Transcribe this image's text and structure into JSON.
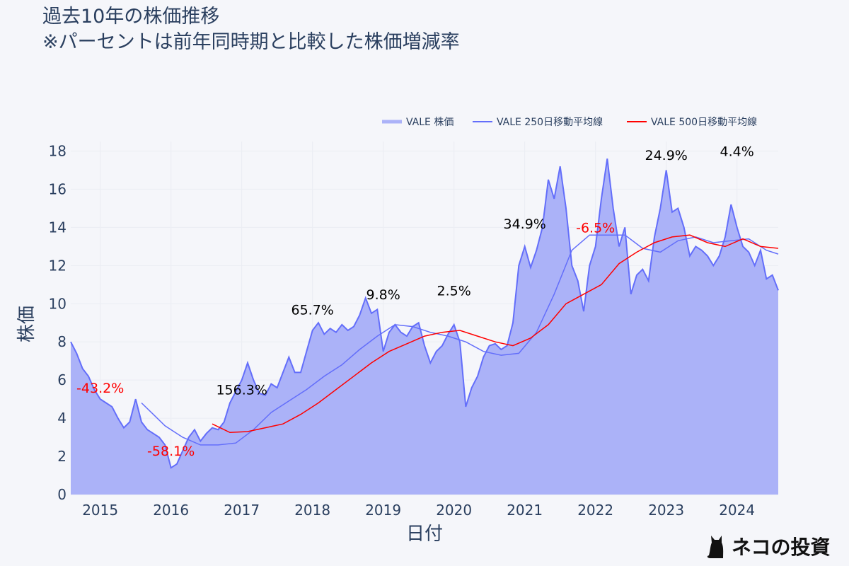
{
  "title_lines": [
    "過去10年の株価推移",
    "※パーセントは前年同時期と比較した株価増減率"
  ],
  "logo_text": "ネコの投資",
  "chart_data": {
    "type": "area",
    "xlabel": "日付",
    "ylabel": "株価",
    "xlim": [
      "2014-08",
      "2024-08"
    ],
    "ylim": [
      0,
      18.5
    ],
    "x_ticks": [
      "2015",
      "2016",
      "2017",
      "2018",
      "2019",
      "2020",
      "2021",
      "2022",
      "2023",
      "2024"
    ],
    "y_ticks": [
      0,
      2,
      4,
      6,
      8,
      10,
      12,
      14,
      16,
      18
    ],
    "grid": true,
    "legend_placement": "top-right",
    "colors": {
      "price_line": "#636efa",
      "price_fill": "#abb2f8",
      "ma250": "#636efa",
      "ma500": "#ff0000",
      "pos_label": "#000000",
      "neg_label": "#ff0000"
    },
    "series": [
      {
        "name": "VALE 株価",
        "kind": "area",
        "points": [
          [
            "2014-08",
            8.0
          ],
          [
            "2014-09",
            7.4
          ],
          [
            "2014-10",
            6.6
          ],
          [
            "2014-11",
            6.2
          ],
          [
            "2014-12",
            5.5
          ],
          [
            "2015-01",
            5.0
          ],
          [
            "2015-02",
            4.8
          ],
          [
            "2015-03",
            4.6
          ],
          [
            "2015-04",
            4.0
          ],
          [
            "2015-05",
            3.5
          ],
          [
            "2015-06",
            3.8
          ],
          [
            "2015-07",
            5.0
          ],
          [
            "2015-08",
            3.8
          ],
          [
            "2015-09",
            3.4
          ],
          [
            "2015-10",
            3.2
          ],
          [
            "2015-11",
            3.0
          ],
          [
            "2015-12",
            2.6
          ],
          [
            "2016-01",
            1.4
          ],
          [
            "2016-02",
            1.6
          ],
          [
            "2016-03",
            2.3
          ],
          [
            "2016-04",
            3.0
          ],
          [
            "2016-05",
            3.4
          ],
          [
            "2016-06",
            2.8
          ],
          [
            "2016-07",
            3.2
          ],
          [
            "2016-08",
            3.5
          ],
          [
            "2016-09",
            3.4
          ],
          [
            "2016-10",
            3.8
          ],
          [
            "2016-11",
            4.8
          ],
          [
            "2016-12",
            5.4
          ],
          [
            "2017-01",
            6.0
          ],
          [
            "2017-02",
            6.9
          ],
          [
            "2017-03",
            6.0
          ],
          [
            "2017-04",
            5.3
          ],
          [
            "2017-05",
            5.2
          ],
          [
            "2017-06",
            5.8
          ],
          [
            "2017-07",
            5.6
          ],
          [
            "2017-08",
            6.4
          ],
          [
            "2017-09",
            7.2
          ],
          [
            "2017-10",
            6.4
          ],
          [
            "2017-11",
            6.4
          ],
          [
            "2017-12",
            7.5
          ],
          [
            "2018-01",
            8.6
          ],
          [
            "2018-02",
            9.0
          ],
          [
            "2018-03",
            8.4
          ],
          [
            "2018-04",
            8.7
          ],
          [
            "2018-05",
            8.5
          ],
          [
            "2018-06",
            8.9
          ],
          [
            "2018-07",
            8.6
          ],
          [
            "2018-08",
            8.8
          ],
          [
            "2018-09",
            9.4
          ],
          [
            "2018-10",
            10.3
          ],
          [
            "2018-11",
            9.5
          ],
          [
            "2018-12",
            9.7
          ],
          [
            "2019-01",
            7.5
          ],
          [
            "2019-02",
            8.5
          ],
          [
            "2019-03",
            8.9
          ],
          [
            "2019-04",
            8.5
          ],
          [
            "2019-05",
            8.3
          ],
          [
            "2019-06",
            8.8
          ],
          [
            "2019-07",
            9.0
          ],
          [
            "2019-08",
            7.8
          ],
          [
            "2019-09",
            6.9
          ],
          [
            "2019-10",
            7.5
          ],
          [
            "2019-11",
            7.8
          ],
          [
            "2019-12",
            8.4
          ],
          [
            "2020-01",
            8.9
          ],
          [
            "2020-02",
            8.0
          ],
          [
            "2020-03",
            4.6
          ],
          [
            "2020-04",
            5.6
          ],
          [
            "2020-05",
            6.2
          ],
          [
            "2020-06",
            7.2
          ],
          [
            "2020-07",
            7.8
          ],
          [
            "2020-08",
            7.9
          ],
          [
            "2020-09",
            7.6
          ],
          [
            "2020-10",
            7.8
          ],
          [
            "2020-11",
            9.0
          ],
          [
            "2020-12",
            12.0
          ],
          [
            "2021-01",
            13.0
          ],
          [
            "2021-02",
            11.9
          ],
          [
            "2021-03",
            12.8
          ],
          [
            "2021-04",
            14.0
          ],
          [
            "2021-05",
            16.5
          ],
          [
            "2021-06",
            15.5
          ],
          [
            "2021-07",
            17.2
          ],
          [
            "2021-08",
            15.0
          ],
          [
            "2021-09",
            12.0
          ],
          [
            "2021-10",
            11.2
          ],
          [
            "2021-11",
            9.6
          ],
          [
            "2021-12",
            12.0
          ],
          [
            "2022-01",
            13.0
          ],
          [
            "2022-02",
            15.5
          ],
          [
            "2022-03",
            17.6
          ],
          [
            "2022-04",
            15.0
          ],
          [
            "2022-05",
            13.0
          ],
          [
            "2022-06",
            14.0
          ],
          [
            "2022-07",
            10.5
          ],
          [
            "2022-08",
            11.5
          ],
          [
            "2022-09",
            11.8
          ],
          [
            "2022-10",
            11.2
          ],
          [
            "2022-11",
            13.5
          ],
          [
            "2022-12",
            15.0
          ],
          [
            "2023-01",
            17.0
          ],
          [
            "2023-02",
            14.8
          ],
          [
            "2023-03",
            15.0
          ],
          [
            "2023-04",
            14.0
          ],
          [
            "2023-05",
            12.5
          ],
          [
            "2023-06",
            13.0
          ],
          [
            "2023-07",
            12.8
          ],
          [
            "2023-08",
            12.5
          ],
          [
            "2023-09",
            12.0
          ],
          [
            "2023-10",
            12.5
          ],
          [
            "2023-11",
            13.5
          ],
          [
            "2023-12",
            15.2
          ],
          [
            "2024-01",
            14.0
          ],
          [
            "2024-02",
            13.0
          ],
          [
            "2024-03",
            12.7
          ],
          [
            "2024-04",
            12.0
          ],
          [
            "2024-05",
            12.8
          ],
          [
            "2024-06",
            11.3
          ],
          [
            "2024-07",
            11.5
          ],
          [
            "2024-08",
            10.7
          ]
        ]
      },
      {
        "name": "VALE 250日移動平均線",
        "kind": "line",
        "points": [
          [
            "2015-08",
            4.8
          ],
          [
            "2015-10",
            4.2
          ],
          [
            "2015-12",
            3.6
          ],
          [
            "2016-03",
            3.0
          ],
          [
            "2016-06",
            2.6
          ],
          [
            "2016-09",
            2.6
          ],
          [
            "2016-12",
            2.7
          ],
          [
            "2017-03",
            3.4
          ],
          [
            "2017-06",
            4.3
          ],
          [
            "2017-09",
            4.9
          ],
          [
            "2017-12",
            5.5
          ],
          [
            "2018-03",
            6.2
          ],
          [
            "2018-06",
            6.8
          ],
          [
            "2018-09",
            7.6
          ],
          [
            "2018-12",
            8.3
          ],
          [
            "2019-03",
            8.9
          ],
          [
            "2019-06",
            8.8
          ],
          [
            "2019-09",
            8.5
          ],
          [
            "2019-12",
            8.3
          ],
          [
            "2020-03",
            8.0
          ],
          [
            "2020-06",
            7.5
          ],
          [
            "2020-09",
            7.3
          ],
          [
            "2020-12",
            7.4
          ],
          [
            "2021-03",
            8.5
          ],
          [
            "2021-06",
            10.5
          ],
          [
            "2021-09",
            12.8
          ],
          [
            "2021-12",
            13.6
          ],
          [
            "2022-03",
            13.6
          ],
          [
            "2022-06",
            13.6
          ],
          [
            "2022-09",
            12.9
          ],
          [
            "2022-12",
            12.7
          ],
          [
            "2023-03",
            13.3
          ],
          [
            "2023-06",
            13.5
          ],
          [
            "2023-09",
            13.2
          ],
          [
            "2023-12",
            13.3
          ],
          [
            "2024-03",
            13.4
          ],
          [
            "2024-06",
            12.8
          ],
          [
            "2024-08",
            12.6
          ]
        ]
      },
      {
        "name": "VALE 500日移動平均線",
        "kind": "line",
        "points": [
          [
            "2016-08",
            3.7
          ],
          [
            "2016-11",
            3.25
          ],
          [
            "2017-02",
            3.3
          ],
          [
            "2017-05",
            3.5
          ],
          [
            "2017-08",
            3.7
          ],
          [
            "2017-11",
            4.2
          ],
          [
            "2018-02",
            4.8
          ],
          [
            "2018-05",
            5.5
          ],
          [
            "2018-08",
            6.2
          ],
          [
            "2018-11",
            6.9
          ],
          [
            "2019-02",
            7.5
          ],
          [
            "2019-05",
            7.9
          ],
          [
            "2019-08",
            8.3
          ],
          [
            "2019-11",
            8.5
          ],
          [
            "2020-02",
            8.6
          ],
          [
            "2020-05",
            8.3
          ],
          [
            "2020-08",
            8.0
          ],
          [
            "2020-11",
            7.8
          ],
          [
            "2021-02",
            8.2
          ],
          [
            "2021-05",
            8.9
          ],
          [
            "2021-08",
            10.0
          ],
          [
            "2021-11",
            10.5
          ],
          [
            "2022-02",
            11.0
          ],
          [
            "2022-05",
            12.1
          ],
          [
            "2022-08",
            12.7
          ],
          [
            "2022-11",
            13.2
          ],
          [
            "2023-02",
            13.5
          ],
          [
            "2023-05",
            13.6
          ],
          [
            "2023-08",
            13.2
          ],
          [
            "2023-11",
            13.0
          ],
          [
            "2024-02",
            13.4
          ],
          [
            "2024-05",
            13.0
          ],
          [
            "2024-08",
            12.9
          ]
        ]
      }
    ],
    "annotations": [
      {
        "text": "-43.2%",
        "date": "2015-01",
        "y": 5.6,
        "sign": "neg"
      },
      {
        "text": "-58.1%",
        "date": "2016-01",
        "y": 2.3,
        "sign": "neg"
      },
      {
        "text": "156.3%",
        "date": "2017-01",
        "y": 5.5,
        "sign": "pos"
      },
      {
        "text": "65.7%",
        "date": "2018-01",
        "y": 9.7,
        "sign": "pos"
      },
      {
        "text": "9.8%",
        "date": "2019-01",
        "y": 10.5,
        "sign": "pos"
      },
      {
        "text": "2.5%",
        "date": "2020-01",
        "y": 10.7,
        "sign": "pos"
      },
      {
        "text": "34.9%",
        "date": "2021-01",
        "y": 14.2,
        "sign": "pos"
      },
      {
        "text": "-6.5%",
        "date": "2022-01",
        "y": 14.0,
        "sign": "neg"
      },
      {
        "text": "24.9%",
        "date": "2023-01",
        "y": 17.8,
        "sign": "pos"
      },
      {
        "text": "4.4%",
        "date": "2024-01",
        "y": 18.0,
        "sign": "pos"
      }
    ]
  }
}
